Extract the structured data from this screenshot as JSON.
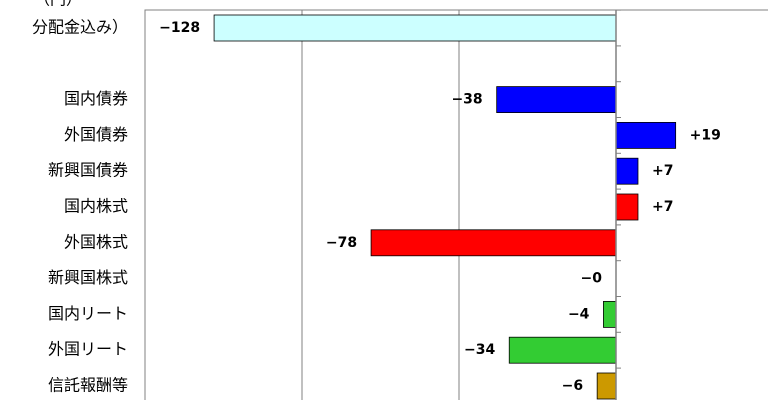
{
  "chart_data": {
    "type": "hbar",
    "unit_label": "（円）",
    "categories": [
      "分配金込み）",
      null,
      "国内債券",
      "外国債券",
      "新興国債券",
      "国内株式",
      "外国株式",
      "新興国株式",
      "国内リート",
      "外国リート",
      "信託報酬等"
    ],
    "values": [
      -128,
      null,
      -38,
      19,
      7,
      7,
      -78,
      0,
      -4,
      -34,
      -6
    ],
    "value_labels": [
      "−128",
      null,
      "−38",
      "+19",
      "+7",
      "+7",
      "−78",
      "−0",
      "−4",
      "−34",
      "−6"
    ],
    "colors": [
      "#ccffff",
      null,
      "#0000ff",
      "#0000ff",
      "#0000ff",
      "#ff0000",
      "#ff0000",
      "#ff0000",
      "#33cc33",
      "#33cc33",
      "#cc9900"
    ],
    "xlim": [
      -150,
      50
    ],
    "xticks": [
      -150,
      -100,
      -50,
      0,
      50
    ],
    "grid": true
  }
}
